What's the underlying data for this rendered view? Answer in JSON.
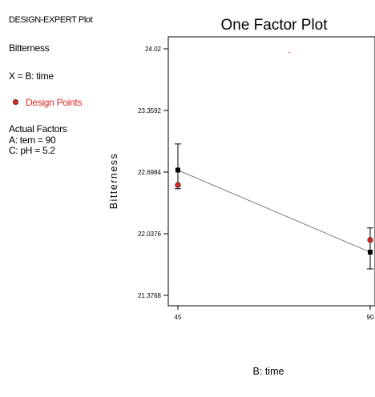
{
  "sidebar": {
    "plot_title": "DESIGN-EXPERT Plot",
    "response": "Bitterness",
    "x_axis_factor": "X = B: time",
    "legend_label": "Design Points",
    "actual_factors_heading": "Actual Factors",
    "factor_a": "A: tem = 90",
    "factor_c": "C: pH = 5.2"
  },
  "colors": {
    "design_point": "#d42a2a",
    "prediction": "#000000",
    "line": "#7f7f7f"
  },
  "chart_data": {
    "type": "line",
    "title": "One Factor Plot",
    "xlabel": "B: time",
    "ylabel": "Bitterness",
    "xlim": [
      45,
      90
    ],
    "ylim": [
      21.3768,
      24.02
    ],
    "x_ticks": [
      "45",
      "90"
    ],
    "y_ticks": [
      "24.02",
      "23.3592",
      "22.6984",
      "22.0376",
      "21.3768"
    ],
    "series": [
      {
        "type": "prediction",
        "x": [
          45,
          90
        ],
        "y": [
          22.72,
          21.84
        ],
        "y_low": [
          22.52,
          21.66
        ],
        "y_high": [
          23.0,
          22.1
        ]
      },
      {
        "name": "Design Points",
        "type": "points",
        "x": [
          45,
          90
        ],
        "y": [
          22.56,
          21.97
        ]
      }
    ],
    "stray_point": {
      "x": 71,
      "y": 23.98
    }
  }
}
